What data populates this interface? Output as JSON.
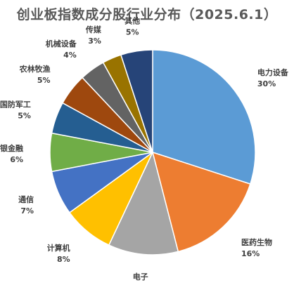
{
  "chart_data": {
    "type": "pie",
    "title": "创业板指数成分股行业分布（2025.6.1）",
    "unit": "%",
    "slices": [
      {
        "label": "电力设备",
        "value": 30,
        "value_label": "30%",
        "color": "#5B9BD5"
      },
      {
        "label": "医药生物",
        "value": 16,
        "value_label": "16%",
        "color": "#ED7D31"
      },
      {
        "label": "电子",
        "value": 11,
        "value_label": "11%",
        "color": "#A5A5A5"
      },
      {
        "label": "计算机",
        "value": 8,
        "value_label": "8%",
        "color": "#FFC000"
      },
      {
        "label": "通信",
        "value": 7,
        "value_label": "7%",
        "color": "#4472C4"
      },
      {
        "label": "非银金融",
        "value": 6,
        "value_label": "6%",
        "color": "#70AD47"
      },
      {
        "label": "国防军工",
        "value": 5,
        "value_label": "5%",
        "color": "#255E91"
      },
      {
        "label": "农林牧渔",
        "value": 5,
        "value_label": "5%",
        "color": "#9E480E"
      },
      {
        "label": "机械设备",
        "value": 4,
        "value_label": "4%",
        "color": "#636363"
      },
      {
        "label": "传媒",
        "value": 3,
        "value_label": "3%",
        "color": "#997300"
      },
      {
        "label": "其他",
        "value": 5,
        "value_label": "5%",
        "color": "#264478"
      }
    ]
  }
}
